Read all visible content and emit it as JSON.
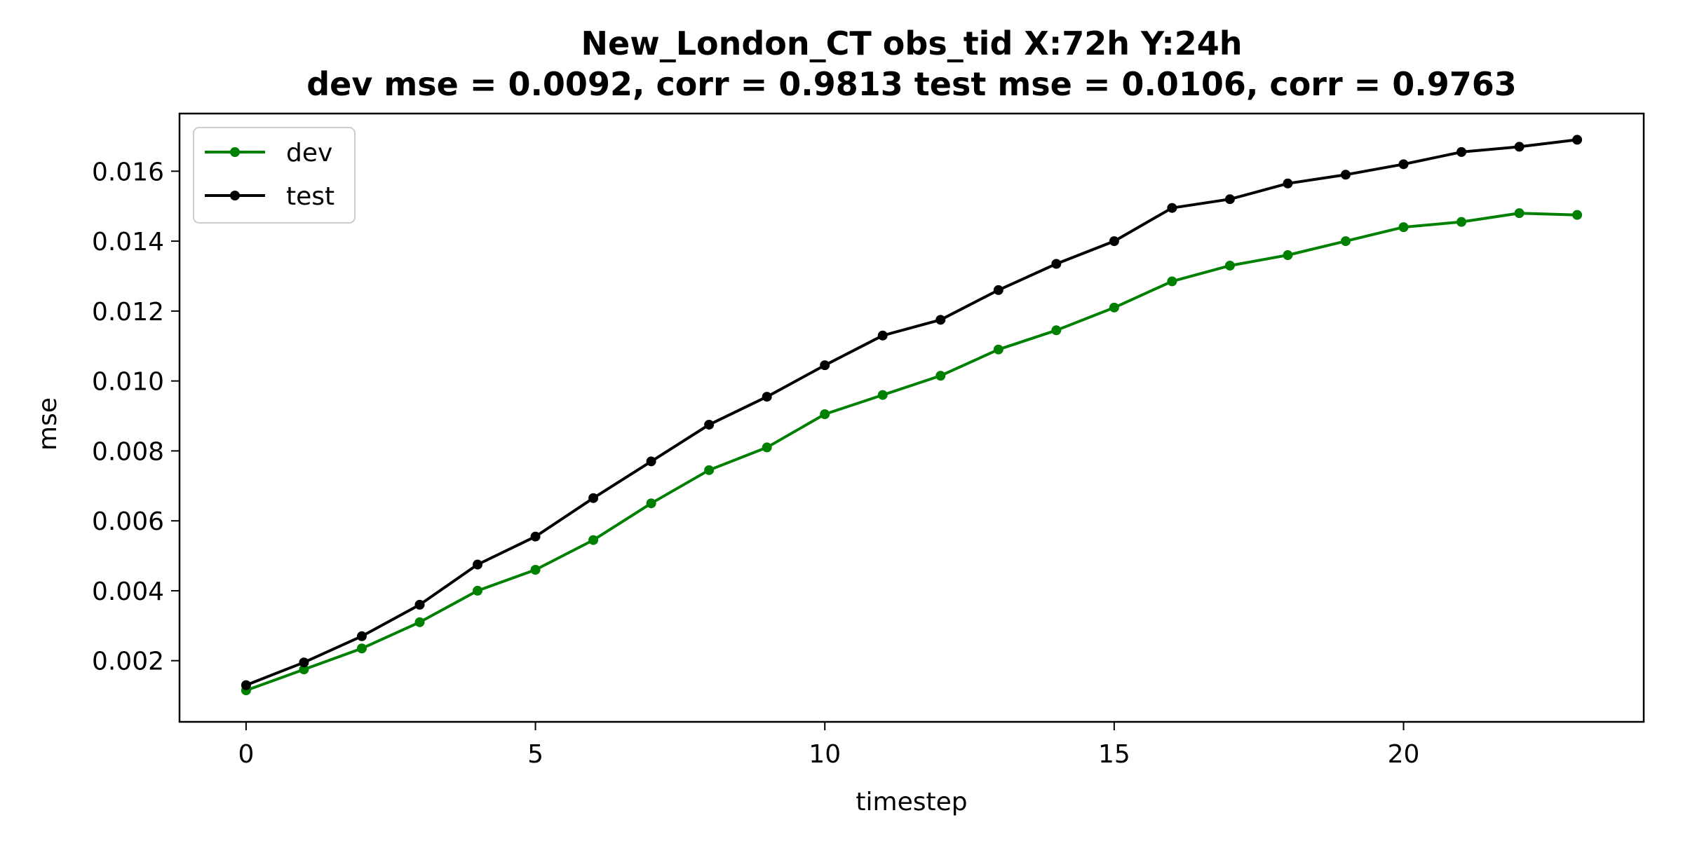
{
  "chart_data": {
    "type": "line",
    "title_lines": [
      "New_London_CT   obs_tid   X:72h   Y:24h",
      "dev mse = 0.0092, corr = 0.9813   test mse = 0.0106, corr = 0.9763"
    ],
    "xlabel": "timestep",
    "ylabel": "mse",
    "xlim": [
      -1.15,
      24.15
    ],
    "ylim": [
      0.00025,
      0.01765
    ],
    "xticks": [
      0,
      5,
      10,
      15,
      20
    ],
    "xtick_labels": [
      "0",
      "5",
      "10",
      "15",
      "20"
    ],
    "yticks": [
      0.002,
      0.004,
      0.006,
      0.008,
      0.01,
      0.012,
      0.014,
      0.016
    ],
    "ytick_labels": [
      "0.002",
      "0.004",
      "0.006",
      "0.008",
      "0.010",
      "0.012",
      "0.014",
      "0.016"
    ],
    "grid": false,
    "legend_position": "upper left",
    "x": [
      0,
      1,
      2,
      3,
      4,
      5,
      6,
      7,
      8,
      9,
      10,
      11,
      12,
      13,
      14,
      15,
      16,
      17,
      18,
      19,
      20,
      21,
      22,
      23
    ],
    "series": [
      {
        "name": "dev",
        "color": "#008000",
        "values": [
          0.00115,
          0.00175,
          0.00235,
          0.0031,
          0.004,
          0.0046,
          0.00545,
          0.0065,
          0.00745,
          0.0081,
          0.00905,
          0.0096,
          0.01015,
          0.0109,
          0.01145,
          0.0121,
          0.01285,
          0.0133,
          0.0136,
          0.014,
          0.0144,
          0.01455,
          0.0148,
          0.01475
        ]
      },
      {
        "name": "test",
        "color": "#000000",
        "values": [
          0.0013,
          0.00195,
          0.0027,
          0.0036,
          0.00475,
          0.00555,
          0.00665,
          0.0077,
          0.00875,
          0.00955,
          0.01045,
          0.0113,
          0.01175,
          0.0126,
          0.01335,
          0.014,
          0.01495,
          0.0152,
          0.01565,
          0.0159,
          0.0162,
          0.01655,
          0.0167,
          0.0169
        ]
      }
    ]
  }
}
